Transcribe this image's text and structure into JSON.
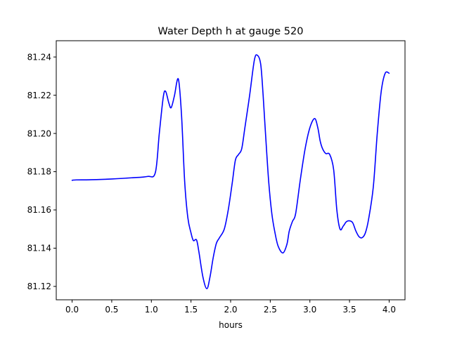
{
  "chart_data": {
    "type": "line",
    "title": "Water Depth h at gauge 520",
    "xlabel": "hours",
    "ylabel": "",
    "xlim": [
      -0.2,
      4.2
    ],
    "ylim": [
      81.113,
      81.2485
    ],
    "xticks": [
      0.0,
      0.5,
      1.0,
      1.5,
      2.0,
      2.5,
      3.0,
      3.5,
      4.0
    ],
    "xtick_labels": [
      "0.0",
      "0.5",
      "1.0",
      "1.5",
      "2.0",
      "2.5",
      "3.0",
      "3.5",
      "4.0"
    ],
    "yticks": [
      81.12,
      81.14,
      81.16,
      81.18,
      81.2,
      81.22,
      81.24
    ],
    "ytick_labels": [
      "81.12",
      "81.14",
      "81.16",
      "81.18",
      "81.20",
      "81.22",
      "81.24"
    ],
    "grid": false,
    "series": [
      {
        "color": "#0000ff",
        "x": [
          0.0,
          0.05,
          0.25,
          0.5,
          0.75,
          0.95,
          1.05,
          1.1,
          1.15,
          1.18,
          1.22,
          1.25,
          1.29,
          1.34,
          1.38,
          1.42,
          1.46,
          1.5,
          1.53,
          1.57,
          1.6,
          1.65,
          1.7,
          1.74,
          1.78,
          1.82,
          1.86,
          1.92,
          1.97,
          2.02,
          2.06,
          2.1,
          2.14,
          2.18,
          2.24,
          2.3,
          2.34,
          2.38,
          2.41,
          2.44,
          2.48,
          2.52,
          2.56,
          2.6,
          2.66,
          2.71,
          2.74,
          2.78,
          2.82,
          2.88,
          2.94,
          3.0,
          3.06,
          3.1,
          3.13,
          3.16,
          3.2,
          3.25,
          3.3,
          3.34,
          3.38,
          3.42,
          3.46,
          3.5,
          3.54,
          3.58,
          3.62,
          3.66,
          3.7,
          3.74,
          3.8,
          3.85,
          3.9,
          3.95,
          4.0
        ],
        "y": [
          81.1755,
          81.1757,
          81.1758,
          81.1762,
          81.1768,
          81.1775,
          81.1795,
          81.2,
          81.219,
          81.222,
          81.216,
          81.2135,
          81.2195,
          81.2285,
          81.21,
          81.175,
          81.156,
          81.148,
          81.144,
          81.1443,
          81.138,
          81.125,
          81.1188,
          81.125,
          81.135,
          81.1425,
          81.1455,
          81.15,
          81.16,
          81.174,
          81.186,
          81.189,
          81.192,
          81.203,
          81.22,
          81.2385,
          81.2408,
          81.236,
          81.22,
          81.2,
          81.175,
          81.158,
          81.148,
          81.141,
          81.1375,
          81.142,
          81.149,
          81.154,
          81.158,
          81.176,
          81.192,
          81.203,
          81.2078,
          81.203,
          81.196,
          81.192,
          81.1895,
          81.189,
          81.181,
          81.16,
          81.15,
          81.1515,
          81.1538,
          81.1543,
          81.1533,
          81.149,
          81.146,
          81.1455,
          81.148,
          81.155,
          81.172,
          81.2,
          81.222,
          81.2315,
          81.2315
        ]
      }
    ]
  }
}
